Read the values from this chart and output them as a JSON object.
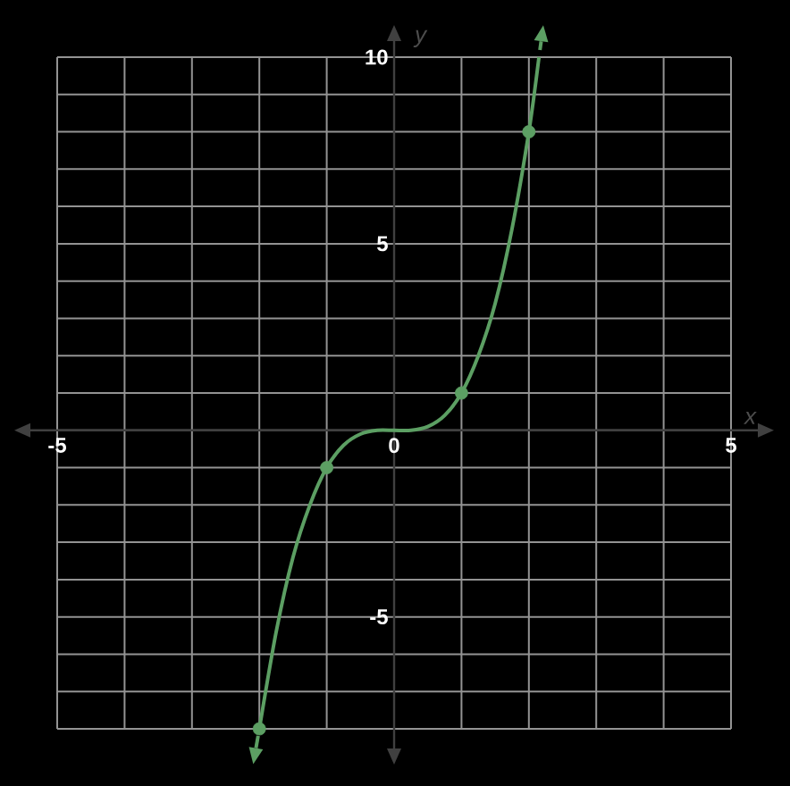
{
  "chart_data": {
    "type": "line",
    "xlabel": "x",
    "ylabel": "y",
    "xlim": [
      -5,
      5
    ],
    "ylim": [
      -8,
      10
    ],
    "grid": true,
    "xticks": [
      -5,
      {
        "value": -4,
        "label": null
      },
      {
        "value": -3,
        "label": null
      },
      {
        "value": -2,
        "label": null
      },
      {
        "value": -1,
        "label": null
      },
      0,
      {
        "value": 1,
        "label": null
      },
      {
        "value": 2,
        "label": null
      },
      {
        "value": 3,
        "label": null
      },
      {
        "value": 4,
        "label": null
      },
      5
    ],
    "yticks": [
      {
        "value": -8,
        "label": null
      },
      {
        "value": -7,
        "label": null
      },
      {
        "value": -6,
        "label": null
      },
      -5,
      {
        "value": -4,
        "label": null
      },
      {
        "value": -3,
        "label": null
      },
      {
        "value": -2,
        "label": null
      },
      {
        "value": -1,
        "label": null
      },
      {
        "value": 0,
        "label": null
      },
      {
        "value": 1,
        "label": null
      },
      {
        "value": 2,
        "label": null
      },
      {
        "value": 3,
        "label": null
      },
      {
        "value": 4,
        "label": null
      },
      5,
      {
        "value": 6,
        "label": null
      },
      {
        "value": 7,
        "label": null
      },
      {
        "value": 8,
        "label": null
      },
      {
        "value": 9,
        "label": null
      },
      10
    ],
    "series": [
      {
        "type": "line",
        "color": "#5c9f63",
        "marker": "none",
        "x": [
          -2,
          -1.75,
          -1.5,
          -1.25,
          -1,
          -0.75,
          -0.5,
          -0.25,
          0,
          0.25,
          0.5,
          0.75,
          1,
          1.25,
          1.5,
          1.75,
          2,
          2.15
        ],
        "values": [
          -8,
          -5.4,
          -3.4,
          -2,
          -1,
          -0.4,
          -0.1,
          0,
          0,
          0,
          0.1,
          0.4,
          1,
          2,
          3.4,
          5.4,
          8,
          10
        ]
      },
      {
        "type": "scatter",
        "color": "#5c9f63",
        "marker": "circle",
        "x": [
          -2,
          -1,
          1,
          2
        ],
        "values": [
          -8,
          -1,
          1,
          8
        ]
      }
    ]
  }
}
